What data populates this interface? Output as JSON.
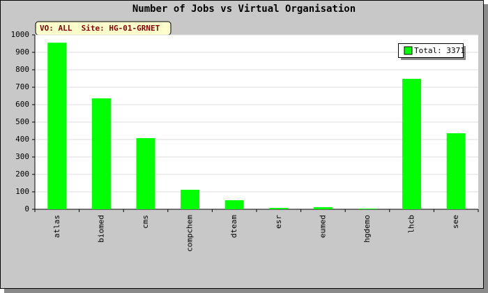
{
  "chart_data": {
    "type": "bar",
    "title": "Number of Jobs vs Virtual Organisation",
    "subtitle": "VO: ALL  Site: HG-01-GRNET",
    "categories": [
      "atlas",
      "biomed",
      "cms",
      "compchem",
      "dteam",
      "esr",
      "eumed",
      "hgdemo",
      "lhcb",
      "see"
    ],
    "series": [
      {
        "name": "Total: 3371",
        "color": "#00ff00",
        "values": [
          955,
          636,
          408,
          112,
          52,
          8,
          12,
          4,
          748,
          436
        ]
      }
    ],
    "ylim": [
      0,
      1000
    ],
    "yticks": [
      0,
      100,
      200,
      300,
      400,
      500,
      600,
      700,
      800,
      900,
      1000
    ],
    "grid": true,
    "legend": "upper-right"
  }
}
